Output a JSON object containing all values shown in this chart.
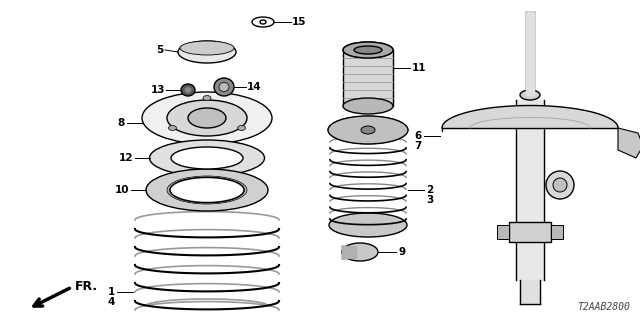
{
  "bg_color": "#ffffff",
  "line_color": "#000000",
  "fig_width": 6.4,
  "fig_height": 3.2,
  "dpi": 100,
  "diagram_code": "T2AAB2800",
  "fr_label": "FR."
}
